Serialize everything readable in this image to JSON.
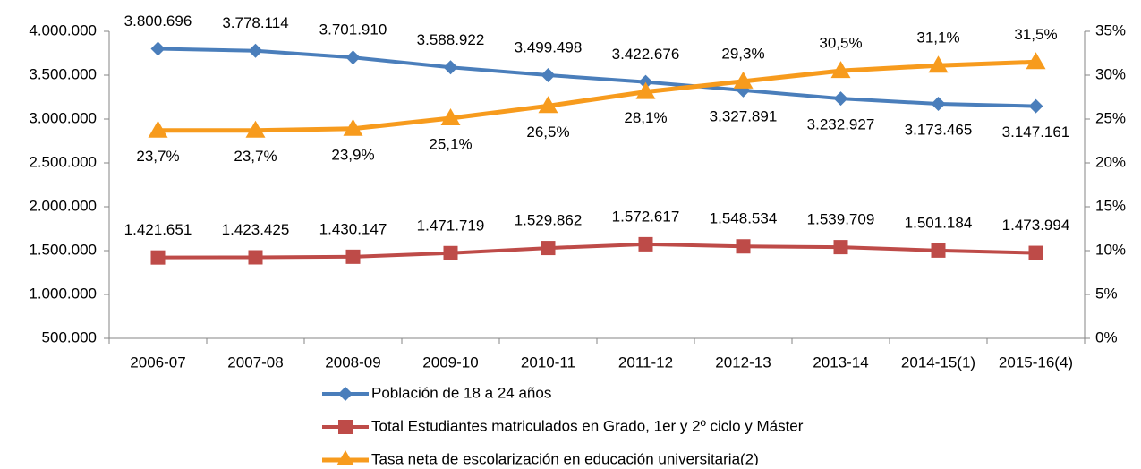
{
  "chart_data": {
    "type": "line",
    "categories": [
      "2006-07",
      "2007-08",
      "2008-09",
      "2009-10",
      "2010-11",
      "2011-12",
      "2012-13",
      "2013-14",
      "2014-15(1)",
      "2015-16(4)"
    ],
    "series": [
      {
        "name": "Población de 18 a 24 años",
        "color": "#4a7ebb",
        "marker": "diamond",
        "values": [
          3800696,
          3778114,
          3701910,
          3588922,
          3499498,
          3422676,
          3327891,
          3232927,
          3173465,
          3147161
        ],
        "value_labels": [
          "3.800.696",
          "3.778.114",
          "3.701.910",
          "3.588.922",
          "3.499.498",
          "3.422.676",
          "3.327.891",
          "3.232.927",
          "3.173.465",
          "3.147.161"
        ]
      },
      {
        "name": "Total Estudiantes matriculados en Grado, 1er y 2º ciclo y Máster",
        "color": "#be4b48",
        "marker": "square",
        "values": [
          1421651,
          1423425,
          1430147,
          1471719,
          1529862,
          1572617,
          1548534,
          1539709,
          1501184,
          1473994
        ],
        "value_labels": [
          "1.421.651",
          "1.423.425",
          "1.430.147",
          "1.471.719",
          "1.529.862",
          "1.572.617",
          "1.548.534",
          "1.539.709",
          "1.501.184",
          "1.473.994"
        ]
      },
      {
        "name": "Tasa neta de escolarización en educación universitaria(2)",
        "color": "#f79b1d",
        "marker": "triangle",
        "axis": "y2",
        "values": [
          23.7,
          23.7,
          23.9,
          25.1,
          26.5,
          28.1,
          29.3,
          30.5,
          31.1,
          31.5
        ],
        "value_labels": [
          "23,7%",
          "23,7%",
          "23,9%",
          "25,1%",
          "26,5%",
          "28,1%",
          "29,3%",
          "30,5%",
          "31,1%",
          "31,5%"
        ]
      }
    ],
    "ylim": [
      500000,
      4000000
    ],
    "yticks": [
      {
        "value": 500000,
        "label": "500.000"
      },
      {
        "value": 1000000,
        "label": "1.000.000"
      },
      {
        "value": 1500000,
        "label": "1.500.000"
      },
      {
        "value": 2000000,
        "label": "2.000.000"
      },
      {
        "value": 2500000,
        "label": "2.500.000"
      },
      {
        "value": 3000000,
        "label": "3.000.000"
      },
      {
        "value": 3500000,
        "label": "3.500.000"
      },
      {
        "value": 4000000,
        "label": "4.000.000"
      }
    ],
    "y2lim": [
      0,
      35
    ],
    "y2ticks": [
      {
        "value": 0,
        "label": "0%"
      },
      {
        "value": 5,
        "label": "5%"
      },
      {
        "value": 10,
        "label": "10%"
      },
      {
        "value": 15,
        "label": "15%"
      },
      {
        "value": 20,
        "label": "20%"
      },
      {
        "value": 25,
        "label": "25%"
      },
      {
        "value": 30,
        "label": "30%"
      },
      {
        "value": 35,
        "label": "35%"
      }
    ],
    "legend": "bottom"
  }
}
